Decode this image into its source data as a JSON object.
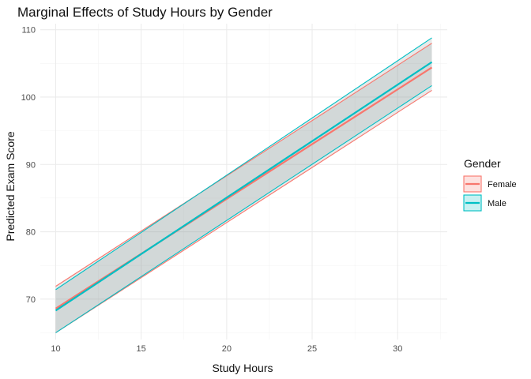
{
  "chart_data": {
    "type": "line",
    "title": "Marginal Effects of Study Hours by Gender",
    "xlabel": "Study Hours",
    "ylabel": "Predicted Exam Score",
    "xlim": [
      9.1,
      32.9
    ],
    "ylim": [
      64.0,
      110.9
    ],
    "x_ticks": [
      10,
      15,
      20,
      25,
      30
    ],
    "y_ticks": [
      70,
      80,
      90,
      100,
      110
    ],
    "x_minor": [
      12.5,
      17.5,
      22.5,
      27.5,
      32.5
    ],
    "y_minor": [
      65,
      75,
      85,
      95,
      105
    ],
    "grid": true,
    "legend": {
      "title": "Gender",
      "position": "right"
    },
    "x": [
      10,
      32
    ],
    "series": [
      {
        "name": "Female",
        "color": "#F8766D",
        "fit": [
          68.6,
          104.4
        ],
        "lower": [
          65.0,
          101.0
        ],
        "upper": [
          71.9,
          108.0
        ]
      },
      {
        "name": "Male",
        "color": "#00BFC4",
        "fit": [
          68.3,
          105.2
        ],
        "lower": [
          65.0,
          101.7
        ],
        "upper": [
          71.4,
          108.8
        ]
      }
    ]
  }
}
